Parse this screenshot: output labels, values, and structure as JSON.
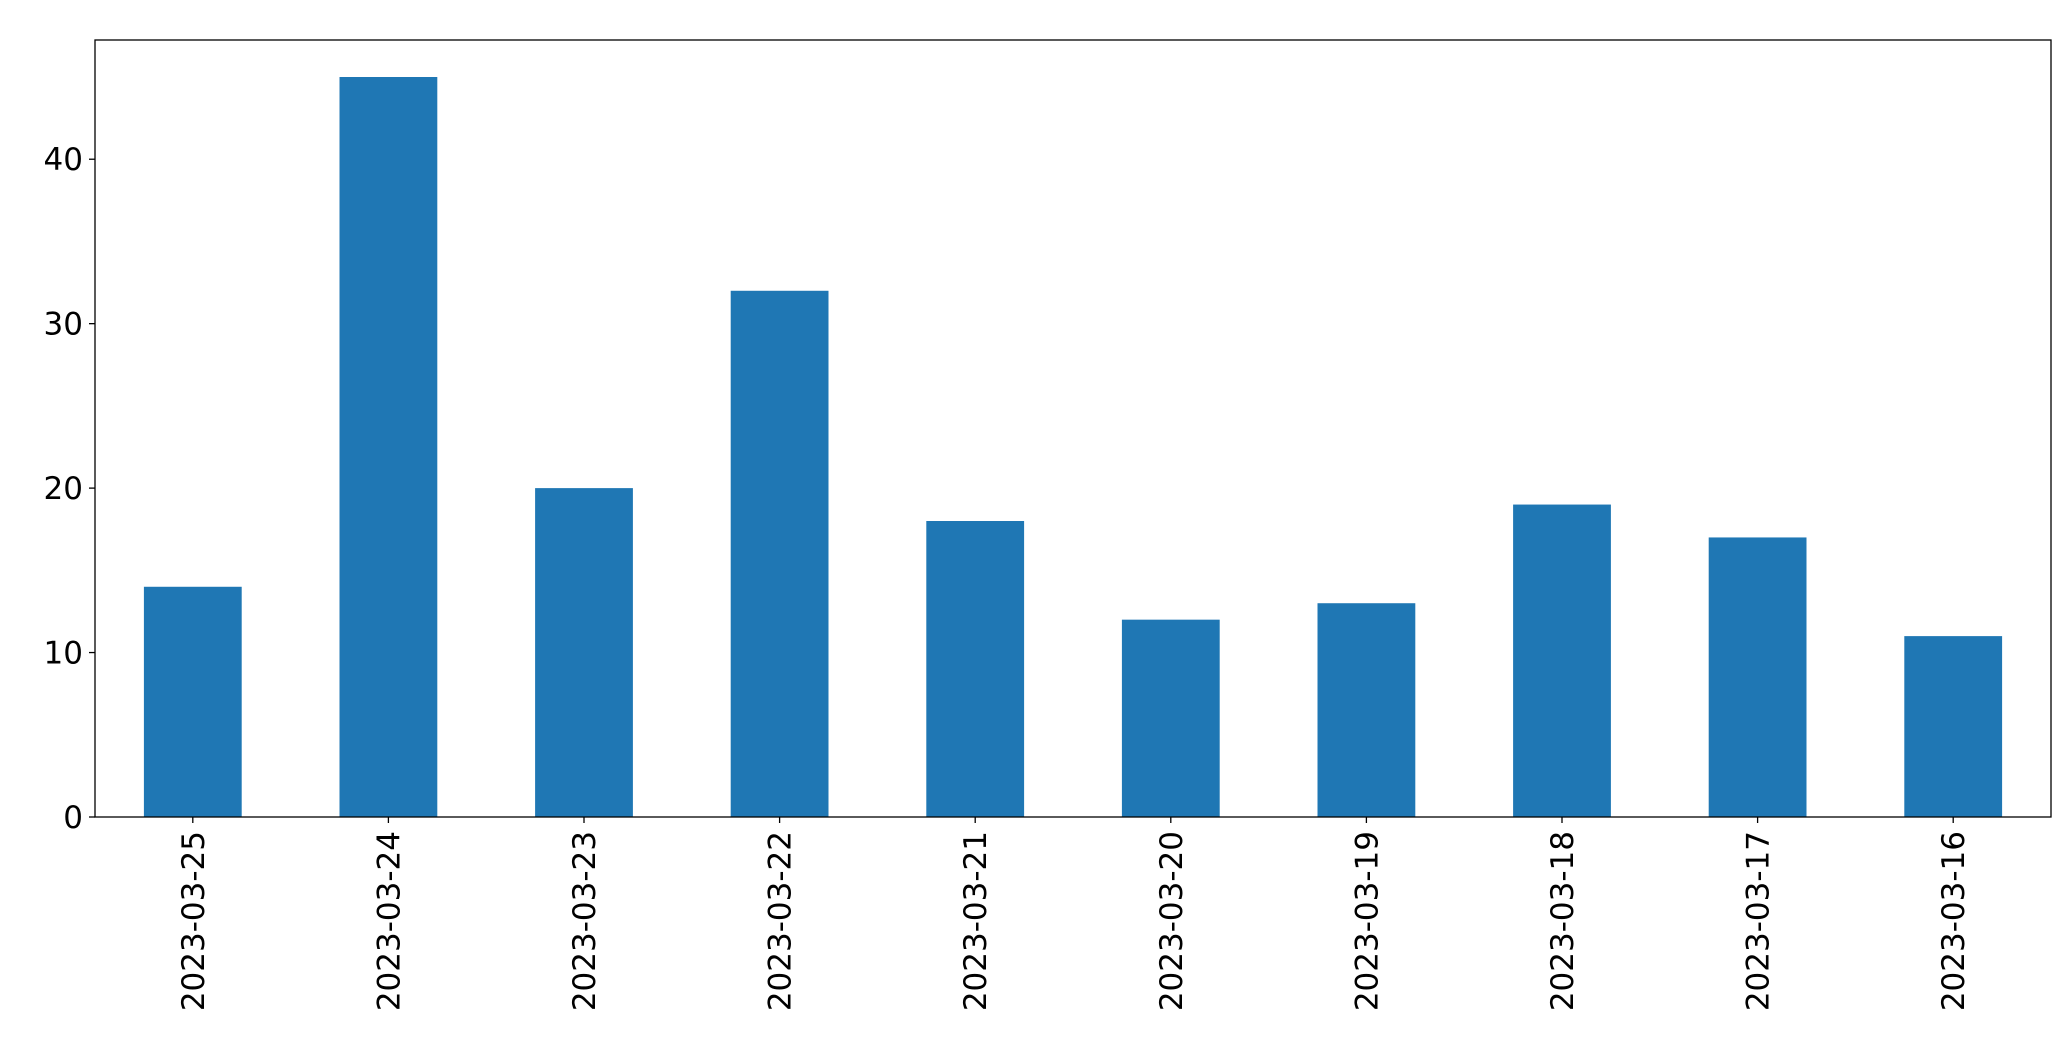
{
  "chart_data": {
    "type": "bar",
    "categories": [
      "2023-03-25",
      "2023-03-24",
      "2023-03-23",
      "2023-03-22",
      "2023-03-21",
      "2023-03-20",
      "2023-03-19",
      "2023-03-18",
      "2023-03-17",
      "2023-03-16"
    ],
    "values": [
      14,
      45,
      20,
      32,
      18,
      12,
      13,
      19,
      17,
      11
    ],
    "color": "#1f77b4",
    "ylim": [
      0,
      47.25
    ],
    "yticks": [
      0,
      10,
      20,
      30,
      40
    ],
    "grid": false
  }
}
